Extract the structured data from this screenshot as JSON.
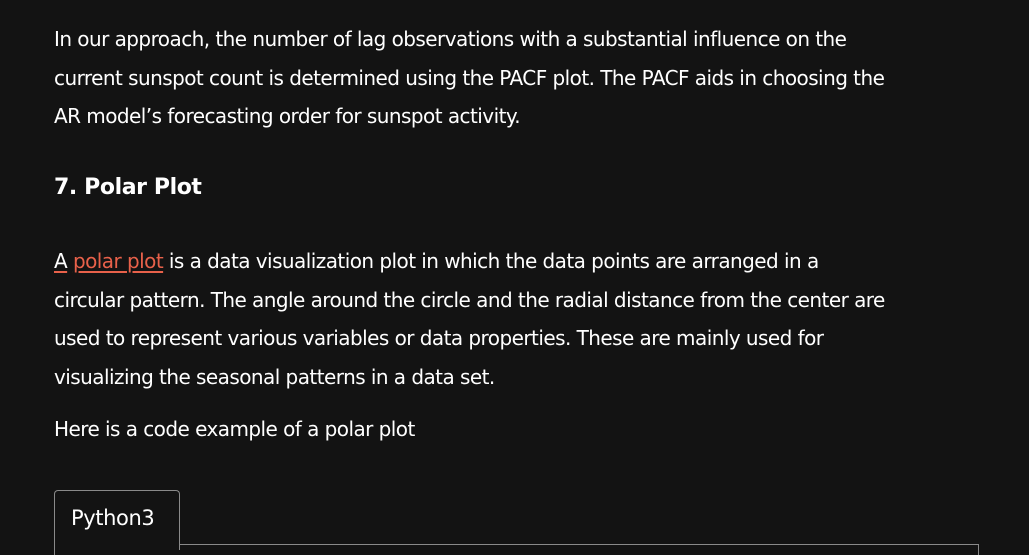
{
  "intro": {
    "lines": [
      "In our approach, the number of lag observations with a substantial influence on the",
      "current sunspot count is determined using the PACF plot. The PACF aids in choosing the",
      "AR model’s forecasting order for sunspot activity."
    ]
  },
  "section": {
    "heading": "7. Polar Plot"
  },
  "polar": {
    "lead": "A",
    "link_text": "polar plot",
    "first_line_rest": " is a data visualization plot in which the data points are arranged in a",
    "lines": [
      "circular pattern. The angle around the circle and the radial distance from the center are",
      "used to represent various variables or data properties. These are mainly used for",
      "visualizing the seasonal patterns in a data set."
    ]
  },
  "example_text": "Here is a code example of a polar plot",
  "code_block": {
    "tab_label": "Python3"
  },
  "colors": {
    "background": "#131313",
    "text": "#ffffff",
    "link": "#e8614a",
    "border": "#8a8a8a"
  }
}
